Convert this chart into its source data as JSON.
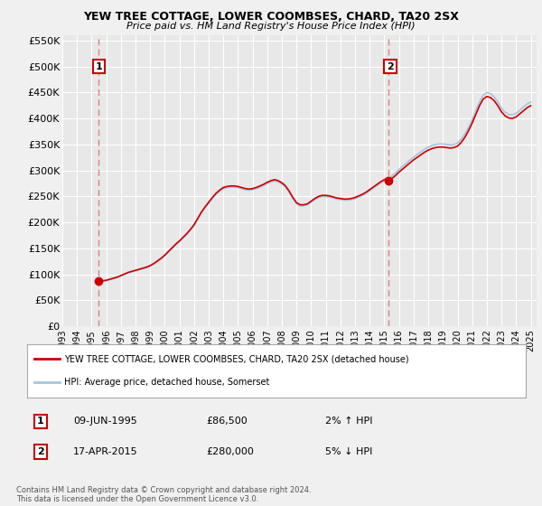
{
  "title": "YEW TREE COTTAGE, LOWER COOMBSES, CHARD, TA20 2SX",
  "subtitle": "Price paid vs. HM Land Registry's House Price Index (HPI)",
  "legend_line1": "YEW TREE COTTAGE, LOWER COOMBSES, CHARD, TA20 2SX (detached house)",
  "legend_line2": "HPI: Average price, detached house, Somerset",
  "footnote": "Contains HM Land Registry data © Crown copyright and database right 2024.\nThis data is licensed under the Open Government Licence v3.0.",
  "transactions": [
    {
      "label": "1",
      "date": "09-JUN-1995",
      "price": 86500,
      "hpi_change": "2% ↑ HPI",
      "x": 1995.44
    },
    {
      "label": "2",
      "date": "17-APR-2015",
      "price": 280000,
      "hpi_change": "5% ↓ HPI",
      "x": 2015.29
    }
  ],
  "hpi_color": "#a8c4e0",
  "price_color": "#cc0000",
  "vline_color": "#e08080",
  "plot_bg": "#e8e8e8",
  "fig_bg": "#f0f0f0",
  "grid_color": "#ffffff",
  "ylim": [
    0,
    560000
  ],
  "yticks": [
    0,
    50000,
    100000,
    150000,
    200000,
    250000,
    300000,
    350000,
    400000,
    450000,
    500000,
    550000
  ],
  "ytick_labels": [
    "£0",
    "£50K",
    "£100K",
    "£150K",
    "£200K",
    "£250K",
    "£300K",
    "£350K",
    "£400K",
    "£450K",
    "£500K",
    "£550K"
  ],
  "xlim_start": 1993.0,
  "xlim_end": 2025.4,
  "xticks": [
    1993,
    1994,
    1995,
    1996,
    1997,
    1998,
    1999,
    2000,
    2001,
    2002,
    2003,
    2004,
    2005,
    2006,
    2007,
    2008,
    2009,
    2010,
    2011,
    2012,
    2013,
    2014,
    2015,
    2016,
    2017,
    2018,
    2019,
    2020,
    2021,
    2022,
    2023,
    2024,
    2025
  ],
  "t1_x": 1995.44,
  "t1_price": 86500,
  "t2_x": 2015.29,
  "t2_price": 280000,
  "hpi_years": [
    1993.0,
    1993.25,
    1993.5,
    1993.75,
    1994.0,
    1994.25,
    1994.5,
    1994.75,
    1995.0,
    1995.25,
    1995.5,
    1995.75,
    1996.0,
    1996.25,
    1996.5,
    1996.75,
    1997.0,
    1997.25,
    1997.5,
    1997.75,
    1998.0,
    1998.25,
    1998.5,
    1998.75,
    1999.0,
    1999.25,
    1999.5,
    1999.75,
    2000.0,
    2000.25,
    2000.5,
    2000.75,
    2001.0,
    2001.25,
    2001.5,
    2001.75,
    2002.0,
    2002.25,
    2002.5,
    2002.75,
    2003.0,
    2003.25,
    2003.5,
    2003.75,
    2004.0,
    2004.25,
    2004.5,
    2004.75,
    2005.0,
    2005.25,
    2005.5,
    2005.75,
    2006.0,
    2006.25,
    2006.5,
    2006.75,
    2007.0,
    2007.25,
    2007.5,
    2007.75,
    2008.0,
    2008.25,
    2008.5,
    2008.75,
    2009.0,
    2009.25,
    2009.5,
    2009.75,
    2010.0,
    2010.25,
    2010.5,
    2010.75,
    2011.0,
    2011.25,
    2011.5,
    2011.75,
    2012.0,
    2012.25,
    2012.5,
    2012.75,
    2013.0,
    2013.25,
    2013.5,
    2013.75,
    2014.0,
    2014.25,
    2014.5,
    2014.75,
    2015.0,
    2015.25,
    2015.5,
    2015.75,
    2016.0,
    2016.25,
    2016.5,
    2016.75,
    2017.0,
    2017.25,
    2017.5,
    2017.75,
    2018.0,
    2018.25,
    2018.5,
    2018.75,
    2019.0,
    2019.25,
    2019.5,
    2019.75,
    2020.0,
    2020.25,
    2020.5,
    2020.75,
    2021.0,
    2021.25,
    2021.5,
    2021.75,
    2022.0,
    2022.25,
    2022.5,
    2022.75,
    2023.0,
    2023.25,
    2023.5,
    2023.75,
    2024.0,
    2024.25,
    2024.5,
    2024.75,
    2025.0
  ],
  "hpi_values": [
    76000,
    77000,
    78000,
    79000,
    80000,
    81000,
    82000,
    83000,
    84000,
    85000,
    86000,
    87000,
    88000,
    90000,
    92000,
    94000,
    97000,
    100000,
    103000,
    105000,
    107000,
    109000,
    111000,
    113000,
    116000,
    120000,
    125000,
    130000,
    136000,
    143000,
    150000,
    157000,
    163000,
    170000,
    177000,
    185000,
    194000,
    206000,
    218000,
    228000,
    237000,
    246000,
    254000,
    260000,
    265000,
    267000,
    268000,
    268000,
    267000,
    265000,
    263000,
    262000,
    263000,
    265000,
    268000,
    271000,
    275000,
    278000,
    280000,
    278000,
    274000,
    268000,
    258000,
    246000,
    236000,
    232000,
    232000,
    234000,
    239000,
    244000,
    248000,
    250000,
    250000,
    249000,
    247000,
    245000,
    244000,
    243000,
    243000,
    244000,
    246000,
    249000,
    252000,
    256000,
    261000,
    266000,
    271000,
    276000,
    280000,
    284000,
    289000,
    295000,
    302000,
    308000,
    314000,
    320000,
    326000,
    331000,
    336000,
    341000,
    345000,
    348000,
    350000,
    351000,
    351000,
    350000,
    349000,
    350000,
    353000,
    360000,
    370000,
    383000,
    398000,
    415000,
    432000,
    445000,
    450000,
    448000,
    442000,
    432000,
    420000,
    412000,
    408000,
    407000,
    410000,
    416000,
    422000,
    428000,
    432000
  ]
}
